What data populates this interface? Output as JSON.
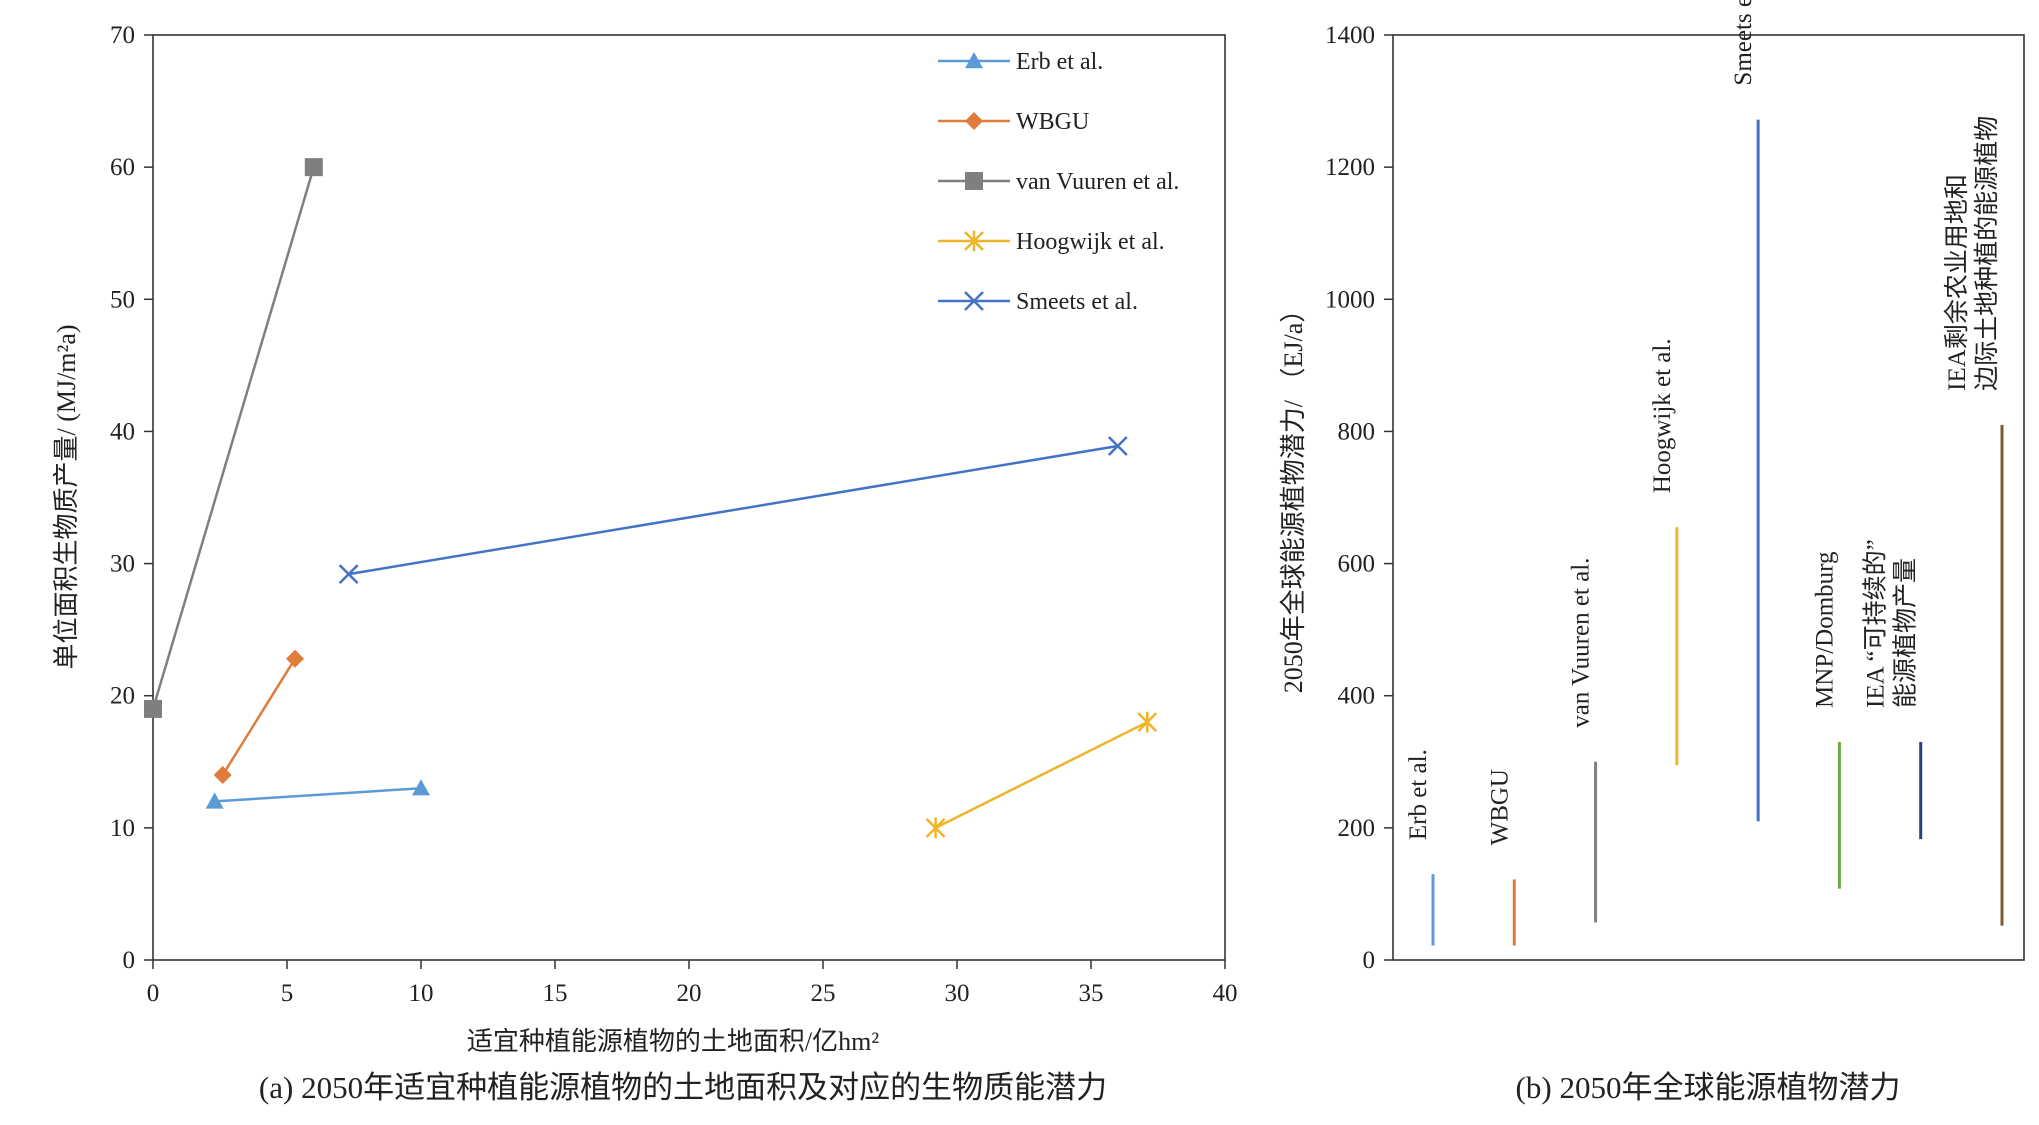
{
  "chart_data": [
    {
      "type": "line",
      "caption": "(a) 2050年适宜种植能源植物的土地面积及对应的生物质能潜力",
      "xlabel": "适宜种植能源植物的土地面积/亿hm²",
      "ylabel": "单位面积生物质产量/ (MJ/m²a)",
      "xlim": [
        0,
        40
      ],
      "ylim": [
        0,
        70
      ],
      "xticks": [
        0,
        5,
        10,
        15,
        20,
        25,
        30,
        35,
        40
      ],
      "yticks": [
        0,
        10,
        20,
        30,
        40,
        50,
        60,
        70
      ],
      "grid": false,
      "legend_position": "top-right",
      "series": [
        {
          "name": "Erb et al.",
          "color": "#5b9bd5",
          "marker": "triangle",
          "points": [
            [
              2.3,
              12
            ],
            [
              10,
              13
            ]
          ]
        },
        {
          "name": "WBGU",
          "color": "#e07b39",
          "marker": "diamond",
          "points": [
            [
              2.6,
              14
            ],
            [
              5.3,
              22.8
            ]
          ]
        },
        {
          "name": "van Vuuren et al.",
          "color": "#7f7f7f",
          "marker": "square",
          "points": [
            [
              0,
              19
            ],
            [
              6,
              60
            ]
          ]
        },
        {
          "name": "Hoogwijk et al.",
          "color": "#f0b428",
          "marker": "asterisk",
          "points": [
            [
              29.2,
              10
            ],
            [
              37.1,
              18
            ]
          ]
        },
        {
          "name": "Smeets et al.",
          "color": "#4472c4",
          "marker": "x",
          "points": [
            [
              7.3,
              29.2
            ],
            [
              36,
              38.9
            ]
          ]
        }
      ]
    },
    {
      "type": "range",
      "caption": "(b) 2050年全球能源植物潜力",
      "ylabel": "2050年全球能源植物潜力/ （EJ/a）",
      "ylim": [
        0,
        1400
      ],
      "yticks": [
        0,
        200,
        400,
        600,
        800,
        1000,
        1200,
        1400
      ],
      "grid": false,
      "ranges": [
        {
          "label_lines": [
            "Erb et al."
          ],
          "low": 22,
          "high": 130,
          "color": "#5b9bd5"
        },
        {
          "label_lines": [
            "WBGU"
          ],
          "low": 22,
          "high": 122,
          "color": "#e07b39"
        },
        {
          "label_lines": [
            "van Vuuren et al."
          ],
          "low": 57,
          "high": 300,
          "color": "#7f7f7f"
        },
        {
          "label_lines": [
            "Hoogwijk et al."
          ],
          "low": 295,
          "high": 655,
          "color": "#f0b428"
        },
        {
          "label_lines": [
            "Smeets et al."
          ],
          "low": 210,
          "high": 1272,
          "color": "#4472c4"
        },
        {
          "label_lines": [
            "MNP/Domburg"
          ],
          "low": 108,
          "high": 330,
          "color": "#70ad47"
        },
        {
          "label_lines": [
            "IEA “可持续的”",
            "能源植物产量"
          ],
          "low": 183,
          "high": 330,
          "color": "#264478"
        },
        {
          "label_lines": [
            "IEA剩余农业用地和",
            "边际土地种植的能源植物"
          ],
          "low": 52,
          "high": 810,
          "color": "#7f5a2a"
        }
      ]
    }
  ]
}
